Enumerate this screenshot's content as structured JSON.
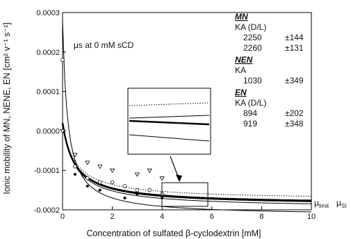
{
  "chart_data": {
    "type": "scatter",
    "xlabel": "Concentration of sulfated β-cyclodextrin [mM]",
    "ylabel": "Ionic mobility of MN, NENE, EN [cm² v⁻¹ s⁻¹]",
    "xlim": [
      0,
      10
    ],
    "ylim": [
      -0.0002,
      0.0003
    ],
    "x_ticks": [
      "0",
      "2",
      "4",
      "6",
      "8",
      "10"
    ],
    "y_ticks": [
      "-0.0002",
      "-0.0001",
      "0.0000",
      "0.0001",
      "0.0002",
      "0.0003"
    ],
    "annotation": "μs at 0 mM sCD",
    "right_labels": [
      "μlimit",
      "μSI"
    ],
    "legend": {
      "groups": [
        {
          "header": "MN",
          "label": "KA (D/L)",
          "rows": [
            {
              "value": "2250",
              "error": "±144"
            },
            {
              "value": "2260",
              "error": "±131"
            }
          ]
        },
        {
          "header": "NEN",
          "label": "KA",
          "rows": [
            {
              "value": "1030",
              "error": "±349"
            }
          ]
        },
        {
          "header": "EN",
          "label": "KA (D/L)",
          "rows": [
            {
              "value": "894",
              "error": "±202"
            },
            {
              "value": "919",
              "error": "±348"
            }
          ]
        }
      ]
    },
    "series": [
      {
        "style": "dotted",
        "mu0": 2e-05,
        "mulim": -0.000175
      },
      {
        "style": "solid",
        "mu0": 2e-05,
        "mulim": -0.000185
      },
      {
        "style": "solid-bold",
        "mu0": 2e-05,
        "mulim": -0.000188
      },
      {
        "style": "solid",
        "mu0": 2e-05,
        "mulim": -0.000195
      },
      {
        "style": "solid",
        "mu0": 0.00028,
        "mulim": -0.000215
      }
    ],
    "points": [
      {
        "marker": "triangle",
        "data": [
          [
            0,
            0.0
          ],
          [
            0.5,
            -6e-05
          ],
          [
            1.0,
            -8e-05
          ],
          [
            1.5,
            -9e-05
          ],
          [
            2.0,
            -0.0001
          ],
          [
            3.0,
            -0.00011
          ],
          [
            3.5,
            -0.0001
          ],
          [
            4.0,
            -0.00012
          ]
        ]
      },
      {
        "marker": "circle",
        "data": [
          [
            0,
            0.00018
          ],
          [
            0.5,
            -9e-05
          ],
          [
            1.0,
            -0.00012
          ],
          [
            1.5,
            -0.00013
          ],
          [
            2.0,
            -0.00013
          ],
          [
            2.5,
            -0.00014
          ],
          [
            3.0,
            -0.00015
          ],
          [
            3.5,
            -0.00015
          ],
          [
            4.0,
            -0.00016
          ]
        ]
      },
      {
        "marker": "dot",
        "data": [
          [
            0.5,
            -0.00011
          ],
          [
            1.0,
            -0.00014
          ],
          [
            1.5,
            -0.00015
          ],
          [
            2.5,
            -0.00017
          ],
          [
            3.0,
            -0.00016
          ],
          [
            4.0,
            -0.00017
          ]
        ]
      }
    ]
  }
}
